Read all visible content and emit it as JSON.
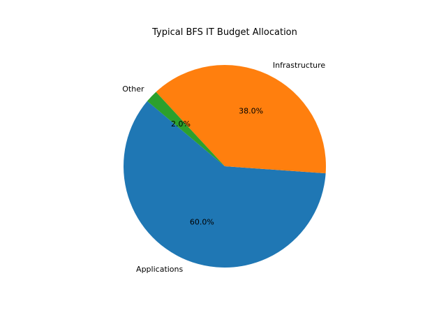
{
  "chart_data": {
    "type": "pie",
    "title": "Typical BFS IT Budget Allocation",
    "categories": [
      "Applications",
      "Infrastructure",
      "Other"
    ],
    "values": [
      60.0,
      38.0,
      2.0
    ],
    "percent_labels": [
      "60.0%",
      "38.0%",
      "2.0%"
    ],
    "colors": [
      "#1f77b4",
      "#ff7f0e",
      "#2ca02c"
    ],
    "start_angle_deg": 140,
    "direction": "counterclockwise",
    "legend": "none"
  }
}
